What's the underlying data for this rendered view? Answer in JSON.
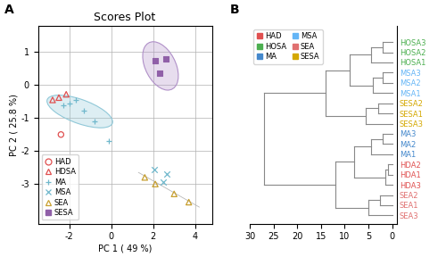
{
  "chart_data": [
    {
      "type": "scatter",
      "panel_label": "A",
      "title": "Scores Plot",
      "x_label": "PC 1 ( 49 %)",
      "y_label": "PC 2 ( 25.8 %)",
      "xlim": [
        -3.5,
        4.8
      ],
      "ylim": [
        -4.2,
        1.8
      ],
      "xticks": [
        -2,
        0,
        2,
        4
      ],
      "yticks": [
        -3,
        -2,
        -1,
        0,
        1
      ],
      "grid": true,
      "legend": "lower left",
      "series": [
        {
          "name": "HAD",
          "color": "#e05050",
          "marker": "circle",
          "x": [
            -2.4
          ],
          "values": [
            -1.5
          ]
        },
        {
          "name": "HDSA",
          "color": "#e05050",
          "marker": "triangle",
          "x": [
            -2.8,
            -2.5,
            -2.15
          ],
          "values": [
            -0.45,
            -0.38,
            -0.28
          ]
        },
        {
          "name": "MA",
          "color": "#70b8cc",
          "marker": "plus",
          "x": [
            -2.3,
            -2.0,
            -1.7,
            -1.3,
            -0.8,
            -0.1
          ],
          "values": [
            -0.62,
            -0.55,
            -0.45,
            -0.78,
            -1.1,
            -1.7
          ]
        },
        {
          "name": "MSA",
          "color": "#70b8cc",
          "marker": "x",
          "x": [
            2.05,
            2.65,
            2.5
          ],
          "values": [
            -2.55,
            -2.7,
            -2.95
          ]
        },
        {
          "name": "SEA",
          "color": "#c8a030",
          "marker": "triangle",
          "x": [
            1.6,
            2.1,
            3.0,
            3.7
          ],
          "values": [
            -2.8,
            -3.0,
            -3.3,
            -3.55
          ]
        },
        {
          "name": "SESA",
          "color": "#9060a8",
          "marker": "square",
          "x": [
            2.1,
            2.6,
            2.3
          ],
          "values": [
            0.75,
            0.78,
            0.35
          ]
        }
      ],
      "ellipses": [
        {
          "center": [
            -1.5,
            -0.8
          ],
          "width": 3.2,
          "height": 0.75,
          "angle": -12,
          "color": "#90c8d8"
        },
        {
          "center": [
            2.35,
            0.58
          ],
          "width": 1.9,
          "height": 1.2,
          "angle": -35,
          "color": "#b090c8"
        }
      ],
      "trend_line": {
        "x": [
          1.3,
          4.2
        ],
        "values": [
          -2.65,
          -3.7
        ],
        "color": "#b8b8b8"
      }
    },
    {
      "type": "dendrogram",
      "panel_label": "B",
      "categories": [
        "HOSA3",
        "HOSA2",
        "HOSA1",
        "MSA3",
        "MSA2",
        "MSA1",
        "SESA2",
        "SESA1",
        "SESA3",
        "MA3",
        "MA2",
        "MA1",
        "HDA2",
        "HDA1",
        "HDA3",
        "SEA2",
        "SEA1",
        "SEA3"
      ],
      "colors": [
        "#4caf50",
        "#4caf50",
        "#4caf50",
        "#64b5f6",
        "#64b5f6",
        "#64b5f6",
        "#d4a800",
        "#d4a800",
        "#d4a800",
        "#4488cc",
        "#4488cc",
        "#4488cc",
        "#e05050",
        "#e05050",
        "#e05050",
        "#e07070",
        "#e07070",
        "#e07070"
      ],
      "linkage": [
        [
          0,
          1,
          2.0
        ],
        [
          18,
          2,
          4.5
        ],
        [
          3,
          4,
          2.0
        ],
        [
          20,
          5,
          4.0
        ],
        [
          19,
          21,
          9.0
        ],
        [
          6,
          7,
          3.0
        ],
        [
          23,
          8,
          5.5
        ],
        [
          22,
          24,
          14.0
        ],
        [
          9,
          10,
          2.0
        ],
        [
          26,
          11,
          4.5
        ],
        [
          12,
          13,
          0.8
        ],
        [
          28,
          14,
          1.5
        ],
        [
          27,
          29,
          8.0
        ],
        [
          15,
          16,
          2.5
        ],
        [
          31,
          17,
          5.0
        ],
        [
          30,
          32,
          12.0
        ],
        [
          25,
          33,
          27.0
        ]
      ],
      "color": "#888888",
      "xlim": [
        30,
        -1
      ],
      "xticks": [
        30,
        25,
        20,
        15,
        10,
        5,
        0
      ],
      "tick_labels": "x",
      "legend": "upper left",
      "groups": [
        {
          "name": "HAD",
          "color": "#e05050"
        },
        {
          "name": "HOSA",
          "color": "#4caf50"
        },
        {
          "name": "MA",
          "color": "#4488cc"
        },
        {
          "name": "MSA",
          "color": "#64b5f6"
        },
        {
          "name": "SEA",
          "color": "#e07070"
        },
        {
          "name": "SESA",
          "color": "#d4a800"
        }
      ]
    }
  ]
}
